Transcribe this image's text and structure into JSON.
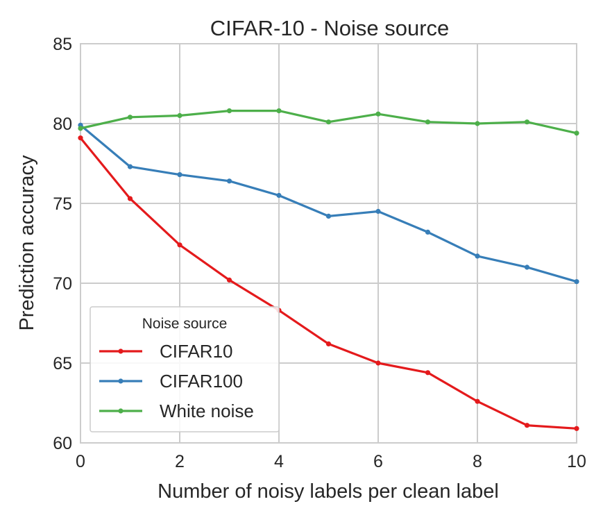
{
  "chart_data": {
    "type": "line",
    "title": "CIFAR-10 - Noise source",
    "xlabel": "Number of noisy labels per clean label",
    "ylabel": "Prediction accuracy",
    "xlim": [
      0,
      10
    ],
    "ylim": [
      60,
      85
    ],
    "xticks": [
      0,
      2,
      4,
      6,
      8,
      10
    ],
    "yticks": [
      60,
      65,
      70,
      75,
      80,
      85
    ],
    "grid": true,
    "legend": {
      "title": "Noise source",
      "placement": "bottom-left"
    },
    "x": [
      0,
      1,
      2,
      3,
      4,
      5,
      6,
      7,
      8,
      9,
      10
    ],
    "series": [
      {
        "name": "CIFAR10",
        "color": "#e41a1c",
        "values": [
          79.1,
          75.3,
          72.4,
          70.2,
          68.3,
          66.2,
          65.0,
          64.4,
          62.6,
          61.1,
          60.9
        ]
      },
      {
        "name": "CIFAR100",
        "color": "#377eb8",
        "values": [
          79.9,
          77.3,
          76.8,
          76.4,
          75.5,
          74.2,
          74.5,
          73.2,
          71.7,
          71.0,
          70.1
        ]
      },
      {
        "name": "White noise",
        "color": "#4daf4a",
        "values": [
          79.7,
          80.4,
          80.5,
          80.8,
          80.8,
          80.1,
          80.6,
          80.1,
          80.0,
          80.1,
          79.4
        ]
      }
    ]
  }
}
